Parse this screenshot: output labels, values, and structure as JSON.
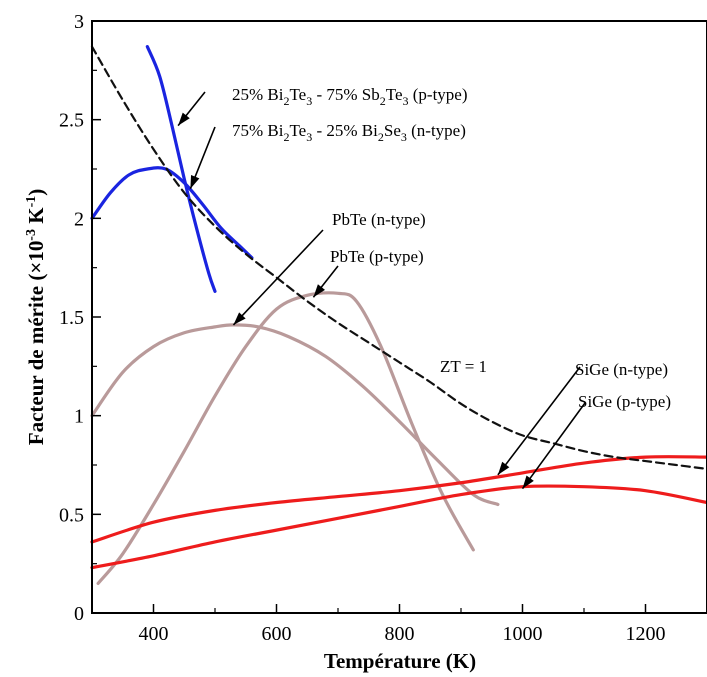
{
  "chart_data": {
    "type": "line",
    "title": "",
    "xlabel": "Température (K)",
    "ylabel": "Facteur de mérite (×10-3 K-1)",
    "ylabel_parts": {
      "base": "Facteur de mérite (×10",
      "exp1": "-3",
      "mid": " K",
      "exp2": "-1",
      "end": ")"
    },
    "xlim": [
      300,
      1300
    ],
    "ylim": [
      0,
      3
    ],
    "x_ticks": [
      400,
      600,
      800,
      1000,
      1200
    ],
    "y_ticks": [
      0,
      0.5,
      1,
      1.5,
      2,
      2.5,
      3
    ],
    "x_tick_labels": [
      "400",
      "600",
      "800",
      "1000",
      "1200"
    ],
    "y_tick_labels": [
      "0",
      "0.5",
      "1",
      "1.5",
      "2",
      "2.5",
      "3"
    ],
    "grid": false,
    "legend": "none (curves labelled by annotations)",
    "series": [
      {
        "name": "25% Bi2Te3 - 75% Sb2Te3 (p-type)",
        "color": "#1a24e0",
        "dashed": false,
        "x": [
          390,
          410,
          430,
          450,
          470,
          490,
          500
        ],
        "y": [
          2.87,
          2.72,
          2.47,
          2.2,
          1.95,
          1.72,
          1.63
        ]
      },
      {
        "name": "75% Bi2Te3 - 25% Bi2Se3 (n-type)",
        "color": "#1a24e0",
        "dashed": false,
        "x": [
          300,
          330,
          360,
          390,
          420,
          450,
          480,
          510,
          540,
          560
        ],
        "y": [
          2.0,
          2.13,
          2.22,
          2.25,
          2.25,
          2.18,
          2.07,
          1.95,
          1.86,
          1.8
        ]
      },
      {
        "name": "PbTe (n-type)",
        "color": "#b99a9a",
        "dashed": false,
        "x": [
          300,
          350,
          400,
          450,
          500,
          530,
          570,
          620,
          680,
          740,
          800,
          860,
          920,
          960
        ],
        "y": [
          1.0,
          1.22,
          1.35,
          1.42,
          1.45,
          1.46,
          1.45,
          1.4,
          1.3,
          1.15,
          0.97,
          0.78,
          0.6,
          0.55
        ]
      },
      {
        "name": "PbTe (p-type)",
        "color": "#b99a9a",
        "dashed": false,
        "x": [
          310,
          350,
          400,
          450,
          500,
          550,
          600,
          650,
          700,
          730,
          770,
          820,
          870,
          920
        ],
        "y": [
          0.15,
          0.3,
          0.55,
          0.82,
          1.1,
          1.35,
          1.54,
          1.61,
          1.62,
          1.58,
          1.35,
          0.96,
          0.6,
          0.32
        ]
      },
      {
        "name": "SiGe (n-type)",
        "color": "#ee1c1c",
        "dashed": false,
        "x": [
          300,
          400,
          500,
          600,
          700,
          800,
          900,
          1000,
          1100,
          1200,
          1300
        ],
        "y": [
          0.36,
          0.46,
          0.52,
          0.56,
          0.59,
          0.62,
          0.66,
          0.71,
          0.76,
          0.79,
          0.79
        ]
      },
      {
        "name": "SiGe (p-type)",
        "color": "#ee1c1c",
        "dashed": false,
        "x": [
          300,
          400,
          500,
          600,
          700,
          800,
          900,
          1000,
          1100,
          1200,
          1300
        ],
        "y": [
          0.23,
          0.29,
          0.36,
          0.42,
          0.48,
          0.54,
          0.6,
          0.64,
          0.64,
          0.62,
          0.56
        ]
      },
      {
        "name": "ZT = 1",
        "color": "#111111",
        "dashed": true,
        "x": [
          300,
          350,
          400,
          450,
          500,
          550,
          600,
          650,
          700,
          750,
          800,
          850,
          900,
          950,
          1000,
          1050,
          1100,
          1150,
          1200,
          1250,
          1300
        ],
        "y": [
          2.87,
          2.6,
          2.35,
          2.13,
          1.96,
          1.82,
          1.7,
          1.58,
          1.47,
          1.37,
          1.27,
          1.17,
          1.06,
          0.97,
          0.9,
          0.86,
          0.82,
          0.79,
          0.77,
          0.75,
          0.73
        ]
      }
    ],
    "annotations": [
      {
        "id": "bi2te3-sb2te3",
        "parts": [
          [
            "25% Bi",
            "n"
          ],
          [
            "2",
            "sub"
          ],
          [
            "Te",
            "n"
          ],
          [
            "3",
            "sub"
          ],
          [
            " - 75% Sb",
            "n"
          ],
          [
            "2",
            "sub"
          ],
          [
            "Te",
            "n"
          ],
          [
            "3",
            "sub"
          ],
          [
            " (p-type)",
            "n"
          ]
        ],
        "arrow_to": [
          440,
          2.47
        ]
      },
      {
        "id": "bi2te3-bi2se3",
        "parts": [
          [
            "75% Bi",
            "n"
          ],
          [
            "2",
            "sub"
          ],
          [
            "Te",
            "n"
          ],
          [
            "3",
            "sub"
          ],
          [
            " - 25% Bi",
            "n"
          ],
          [
            "2",
            "sub"
          ],
          [
            "Se",
            "n"
          ],
          [
            "3",
            "sub"
          ],
          [
            " (n-type)",
            "n"
          ]
        ],
        "arrow_to": [
          460,
          2.15
        ]
      },
      {
        "id": "pbte-n",
        "parts": [
          [
            "PbTe (n-type)",
            "n"
          ]
        ],
        "arrow_to": [
          530,
          1.46
        ]
      },
      {
        "id": "pbte-p",
        "parts": [
          [
            "PbTe (p-type)",
            "n"
          ]
        ],
        "arrow_to": [
          660,
          1.6
        ]
      },
      {
        "id": "zt-1",
        "parts": [
          [
            "ZT = 1",
            "n"
          ]
        ],
        "arrow_to": null
      },
      {
        "id": "sige-n",
        "parts": [
          [
            "SiGe (n-type)",
            "n"
          ]
        ],
        "arrow_to": [
          960,
          0.7
        ]
      },
      {
        "id": "sige-p",
        "parts": [
          [
            "SiGe (p-type)",
            "n"
          ]
        ],
        "arrow_to": [
          1000,
          0.63
        ]
      }
    ]
  }
}
